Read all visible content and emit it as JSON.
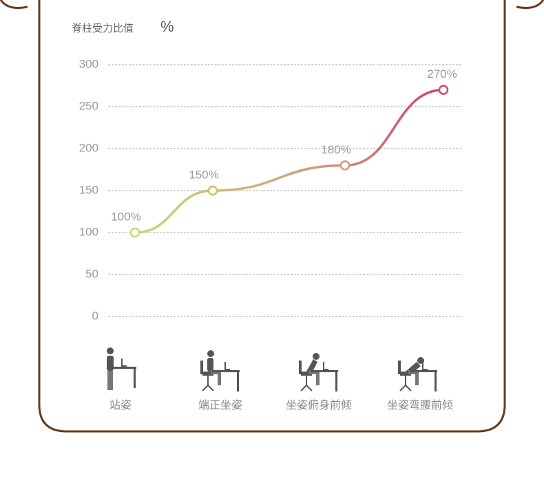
{
  "chart_data": {
    "type": "line",
    "y_label": "脊柱受力比值",
    "y_unit": "%",
    "categories": [
      "站姿",
      "端正坐姿",
      "坐姿俯身前倾",
      "坐姿弯腰前倾"
    ],
    "values": [
      100,
      150,
      180,
      270
    ],
    "value_labels": [
      "100%",
      "150%",
      "180%",
      "270%"
    ],
    "colors": [
      "#c9d77a",
      "#c8c06e",
      "#d39a7c",
      "#cc4a72"
    ],
    "ylim": [
      0,
      300
    ],
    "yticks": [
      0,
      50,
      100,
      150,
      200,
      250,
      300
    ],
    "grid": true
  }
}
